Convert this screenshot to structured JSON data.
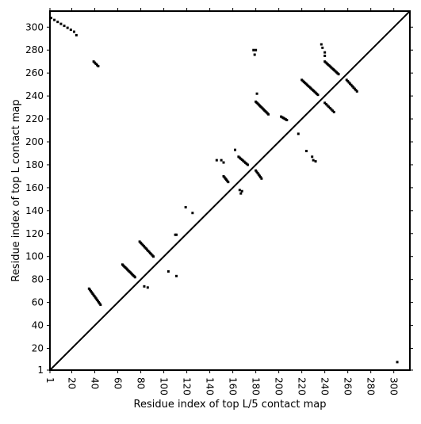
{
  "chart_data": {
    "type": "scatter",
    "xlabel": "Residue index of top L/5 contact map",
    "ylabel": "Residue index of top L contact map",
    "xlim": [
      1,
      314
    ],
    "ylim": [
      1,
      314
    ],
    "grid": false,
    "diagonal": true,
    "xticks": [
      "1",
      "20",
      "40",
      "60",
      "80",
      "100",
      "120",
      "140",
      "160",
      "180",
      "200",
      "220",
      "240",
      "260",
      "280",
      "300"
    ],
    "yticks": [
      "1",
      "20",
      "40",
      "60",
      "80",
      "100",
      "120",
      "140",
      "160",
      "180",
      "200",
      "220",
      "240",
      "260",
      "280",
      "300"
    ],
    "tick_values": [
      1,
      20,
      40,
      60,
      80,
      100,
      120,
      140,
      160,
      180,
      200,
      220,
      240,
      260,
      280,
      300
    ],
    "series": [
      {
        "marker_color": "#000000",
        "segments": [
          {
            "from": [
              35,
              72
            ],
            "to": [
              45,
              58
            ],
            "n": 14
          },
          {
            "from": [
              64,
              93
            ],
            "to": [
              75,
              82
            ],
            "n": 14
          },
          {
            "from": [
              79,
              113
            ],
            "to": [
              91,
              100
            ],
            "n": 14
          },
          {
            "from": [
              152,
              170
            ],
            "to": [
              156,
              165
            ],
            "n": 6
          },
          {
            "from": [
              165,
              187
            ],
            "to": [
              173,
              180
            ],
            "n": 9
          },
          {
            "from": [
              180,
              175
            ],
            "to": [
              185,
              168
            ],
            "n": 7
          },
          {
            "from": [
              180,
              235
            ],
            "to": [
              191,
              224
            ],
            "n": 14
          },
          {
            "from": [
              220,
              254
            ],
            "to": [
              234,
              241
            ],
            "n": 16
          },
          {
            "from": [
              240,
              270
            ],
            "to": [
              252,
              259
            ],
            "n": 14
          },
          {
            "from": [
              259,
              254
            ],
            "to": [
              268,
              244
            ],
            "n": 10
          },
          {
            "from": [
              240,
              234
            ],
            "to": [
              248,
              226
            ],
            "n": 8
          },
          {
            "from": [
              202,
              222
            ],
            "to": [
              207,
              219
            ],
            "n": 6
          },
          {
            "from": [
              2,
              308
            ],
            "to": [
              22,
              296
            ],
            "n": 8
          },
          {
            "from": [
              39,
              270
            ],
            "to": [
              43,
              266
            ],
            "n": 5
          }
        ],
        "points": [
          [
            24,
            293
          ],
          [
            178,
            280
          ],
          [
            179,
            276
          ],
          [
            180,
            280
          ],
          [
            181,
            242
          ],
          [
            237,
            285
          ],
          [
            238,
            282
          ],
          [
            240,
            278
          ],
          [
            240,
            275
          ],
          [
            162,
            193
          ],
          [
            146,
            184
          ],
          [
            150,
            184
          ],
          [
            152,
            182
          ],
          [
            166,
            158
          ],
          [
            167,
            155
          ],
          [
            168,
            157
          ],
          [
            217,
            207
          ],
          [
            224,
            192
          ],
          [
            229,
            187
          ],
          [
            230,
            184
          ],
          [
            232,
            183
          ],
          [
            83,
            74
          ],
          [
            86,
            73
          ],
          [
            104,
            87
          ],
          [
            111,
            83
          ],
          [
            110,
            119
          ],
          [
            111,
            119
          ],
          [
            119,
            143
          ],
          [
            125,
            138
          ],
          [
            303,
            8
          ]
        ]
      }
    ]
  }
}
